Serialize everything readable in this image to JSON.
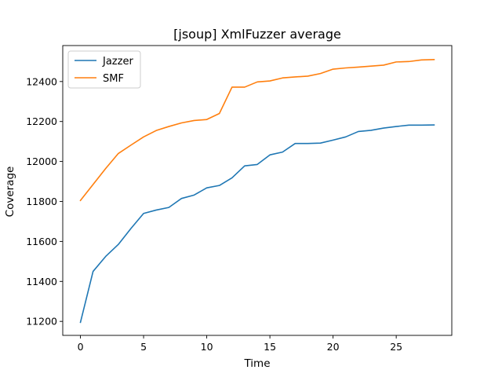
{
  "chart_data": {
    "type": "line",
    "title": "[jsoup] XmlFuzzer average",
    "xlabel": "Time",
    "ylabel": "Coverage",
    "xlim": [
      -1.4,
      29.4
    ],
    "ylim": [
      11130,
      12580
    ],
    "xticks": [
      0,
      5,
      10,
      15,
      20,
      25
    ],
    "yticks": [
      11200,
      11400,
      11600,
      11800,
      12000,
      12200,
      12400
    ],
    "grid": false,
    "legend_position": "top-left",
    "x": [
      0,
      1,
      2,
      3,
      4,
      5,
      6,
      7,
      8,
      9,
      10,
      11,
      12,
      13,
      14,
      15,
      16,
      17,
      18,
      19,
      20,
      21,
      22,
      23,
      24,
      25,
      26,
      27,
      28
    ],
    "series": [
      {
        "name": "Jazzer",
        "color": "#1f77b4",
        "values": [
          11195,
          11450,
          11525,
          11585,
          11665,
          11740,
          11757,
          11770,
          11815,
          11832,
          11868,
          11880,
          11918,
          11978,
          11985,
          12033,
          12047,
          12090,
          12090,
          12092,
          12107,
          12123,
          12150,
          12156,
          12167,
          12175,
          12182,
          12182,
          12183
        ]
      },
      {
        "name": "SMF",
        "color": "#ff7f0e",
        "values": [
          11805,
          11885,
          11965,
          12040,
          12082,
          12123,
          12155,
          12175,
          12193,
          12205,
          12210,
          12240,
          12372,
          12372,
          12398,
          12403,
          12418,
          12423,
          12427,
          12440,
          12462,
          12468,
          12472,
          12477,
          12482,
          12498,
          12500,
          12508,
          12510
        ]
      }
    ]
  }
}
